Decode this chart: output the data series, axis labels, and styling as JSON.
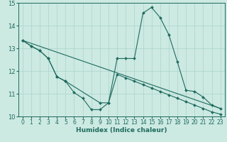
{
  "xlabel": "Humidex (Indice chaleur)",
  "xlim": [
    -0.5,
    23.5
  ],
  "ylim": [
    10,
    15
  ],
  "yticks": [
    10,
    11,
    12,
    13,
    14,
    15
  ],
  "xticks": [
    0,
    1,
    2,
    3,
    4,
    5,
    6,
    7,
    8,
    9,
    10,
    11,
    12,
    13,
    14,
    15,
    16,
    17,
    18,
    19,
    20,
    21,
    22,
    23
  ],
  "bg_color": "#cce9e2",
  "line_color": "#1e6b5e",
  "grid_color": "#aad4cc",
  "curves": [
    {
      "x": [
        0,
        1,
        2,
        3,
        4,
        5,
        6,
        7,
        8,
        9,
        10,
        11,
        12,
        13,
        14,
        15,
        16,
        17,
        18,
        19,
        20,
        21,
        22,
        23
      ],
      "y": [
        13.35,
        13.1,
        12.9,
        12.55,
        11.75,
        11.55,
        11.05,
        10.8,
        10.3,
        10.3,
        10.6,
        12.55,
        12.55,
        12.55,
        14.55,
        14.8,
        14.35,
        13.6,
        12.4,
        11.15,
        11.1,
        10.85,
        10.5,
        10.35
      ],
      "marker": true
    },
    {
      "x": [
        0,
        1,
        2,
        3,
        4,
        5,
        9,
        10,
        11,
        12,
        13,
        14,
        15,
        16,
        17,
        18,
        19,
        20,
        21,
        22,
        23
      ],
      "y": [
        13.35,
        13.1,
        12.9,
        12.55,
        11.75,
        11.55,
        10.6,
        10.6,
        11.85,
        11.7,
        11.55,
        11.4,
        11.25,
        11.1,
        10.95,
        10.8,
        10.65,
        10.5,
        10.35,
        10.2,
        10.1
      ],
      "marker": true
    },
    {
      "x": [
        0,
        23
      ],
      "y": [
        13.35,
        10.35
      ],
      "marker": false
    }
  ]
}
